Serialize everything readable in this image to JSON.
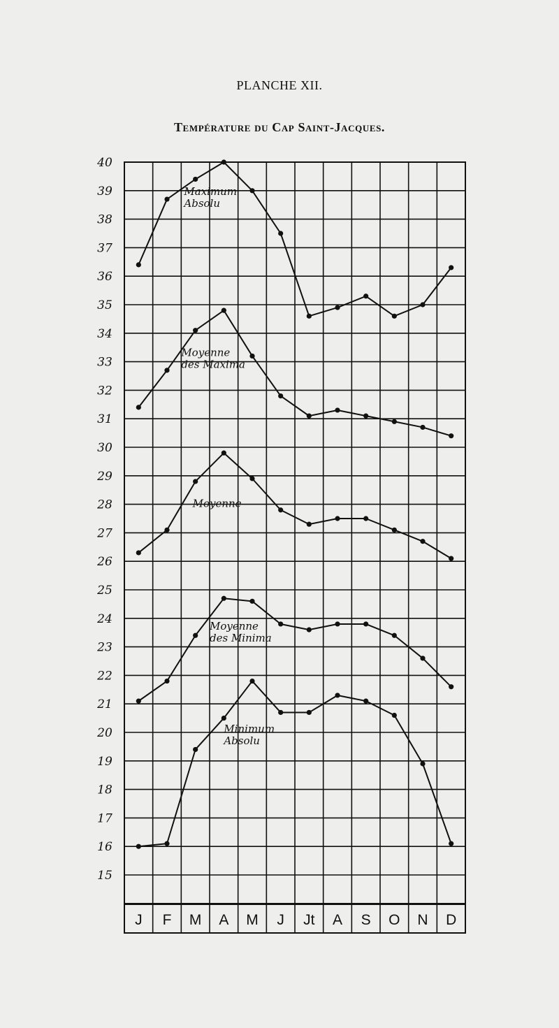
{
  "header": {
    "plate": "PLANCHE XII.",
    "title": "Température du Cap Saint-Jacques."
  },
  "chart_data": {
    "type": "line",
    "title": "Température du Cap Saint-Jacques.",
    "categories": [
      "J",
      "F",
      "M",
      "A",
      "M",
      "J",
      "Jt",
      "A",
      "S",
      "O",
      "N",
      "D"
    ],
    "yticks": [
      40,
      39,
      38,
      37,
      36,
      35,
      34,
      33,
      32,
      31,
      30,
      29,
      28,
      27,
      26,
      25,
      24,
      23,
      22,
      21,
      20,
      19,
      18,
      17,
      16,
      15
    ],
    "ylim": [
      14,
      40
    ],
    "grid": true,
    "series": [
      {
        "name": "Maximum Absolu",
        "label_lines": [
          "Maximum",
          "Absolu"
        ],
        "values": [
          36.4,
          38.7,
          39.4,
          40.0,
          39.0,
          37.5,
          34.6,
          34.9,
          35.3,
          34.6,
          35.0,
          36.3
        ]
      },
      {
        "name": "Moyenne des Maxima",
        "label_lines": [
          "Moyenne",
          "des Maxima"
        ],
        "values": [
          31.4,
          32.7,
          34.1,
          34.8,
          33.2,
          31.8,
          31.1,
          31.3,
          31.1,
          30.9,
          30.7,
          30.4
        ]
      },
      {
        "name": "Moyenne",
        "label_lines": [
          "Moyenne"
        ],
        "values": [
          26.3,
          27.1,
          28.8,
          29.8,
          28.9,
          27.8,
          27.3,
          27.5,
          27.5,
          27.1,
          26.7,
          26.1
        ]
      },
      {
        "name": "Moyenne des Minima",
        "label_lines": [
          "Moyenne",
          "des Minima"
        ],
        "values": [
          21.1,
          21.8,
          23.4,
          24.7,
          24.6,
          23.8,
          23.6,
          23.8,
          23.8,
          23.4,
          22.6,
          21.6
        ]
      },
      {
        "name": "Minimum Absolu",
        "label_lines": [
          "Minimum",
          "Absolu"
        ],
        "values": [
          16.0,
          16.1,
          19.4,
          20.5,
          21.8,
          20.7,
          20.7,
          21.3,
          21.1,
          20.6,
          18.9,
          16.1
        ]
      }
    ]
  }
}
